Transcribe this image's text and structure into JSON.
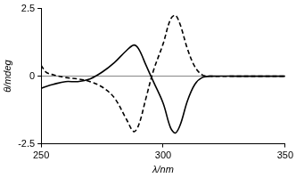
{
  "chart_data": {
    "type": "line",
    "x_label": "λ/nm",
    "y_label": "θ/mdeg",
    "x": [
      250,
      252,
      255,
      260,
      265,
      270,
      275,
      280,
      285,
      288,
      290,
      293,
      296,
      300,
      303,
      305,
      307,
      310,
      313,
      316,
      320,
      330,
      340,
      350
    ],
    "series": [
      {
        "color": "#000000",
        "line_style": "solid",
        "values": [
          -0.45,
          -0.38,
          -0.3,
          -0.2,
          -0.2,
          -0.1,
          0.15,
          0.5,
          0.95,
          1.15,
          1.0,
          0.4,
          -0.2,
          -1.0,
          -1.9,
          -2.1,
          -1.8,
          -0.9,
          -0.3,
          -0.05,
          0,
          0,
          0,
          0
        ]
      },
      {
        "color": "#000000",
        "line_style": "dashed",
        "values": [
          0.4,
          0.15,
          0.05,
          -0.05,
          -0.1,
          -0.2,
          -0.4,
          -0.8,
          -1.6,
          -2.05,
          -1.8,
          -0.8,
          0.2,
          1.2,
          2.1,
          2.25,
          1.9,
          1.0,
          0.35,
          0.05,
          0,
          0,
          0,
          0
        ]
      }
    ],
    "xlim": [
      250,
      350
    ],
    "xticks": [
      250,
      300,
      350
    ],
    "ylim": [
      -2.5,
      2.5
    ],
    "yticks": [
      -2.5,
      0,
      2.5
    ]
  }
}
